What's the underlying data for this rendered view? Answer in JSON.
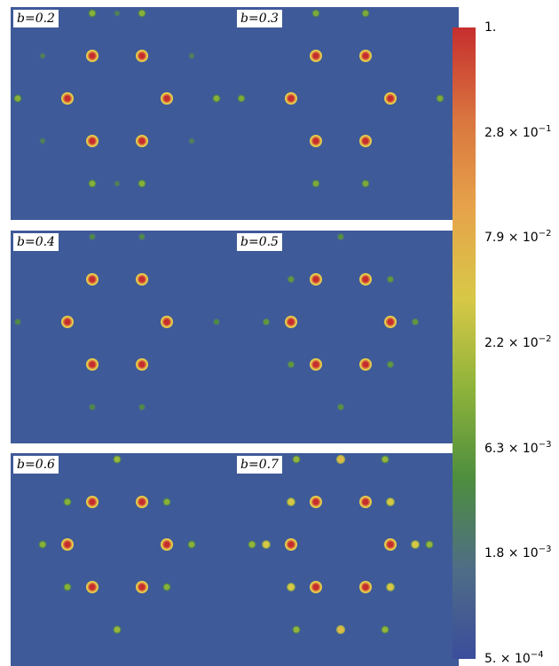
{
  "chart_data": {
    "type": "heatmap",
    "panels": [
      {
        "label": "b=0.2",
        "outer_ring_intensity": 0.012,
        "diagonal_spot_intensity": 0.003,
        "apex_spots": false
      },
      {
        "label": "b=0.3",
        "outer_ring_intensity": 0.01,
        "diagonal_spot_intensity": 0.0,
        "apex_spots": false
      },
      {
        "label": "b=0.4",
        "outer_ring_intensity": 0.004,
        "diagonal_spot_intensity": 0.0,
        "apex_spots": false
      },
      {
        "label": "b=0.5",
        "outer_ring_intensity": 0.006,
        "diagonal_spot_intensity": 0.0,
        "apex_spots": true,
        "apex_intensity": 0.005
      },
      {
        "label": "b=0.6",
        "outer_ring_intensity": 0.012,
        "diagonal_spot_intensity": 0.0,
        "apex_spots": true,
        "apex_intensity": 0.015
      },
      {
        "label": "b=0.7",
        "outer_ring_intensity": 0.04,
        "diagonal_spot_intensity": 0.0,
        "apex_spots": true,
        "apex_intensity": 0.06
      }
    ],
    "bragg_peak_intensity": 1.0,
    "colorbar": {
      "scale": "log",
      "min": 0.0005,
      "max": 1.0,
      "tick_labels": [
        {
          "mantissa": "1.",
          "exp": ""
        },
        {
          "mantissa": "2.8 × 10",
          "exp": "−1"
        },
        {
          "mantissa": "7.9 × 10",
          "exp": "−2"
        },
        {
          "mantissa": "2.2 × 10",
          "exp": "−2"
        },
        {
          "mantissa": "6.3 × 10",
          "exp": "−3"
        },
        {
          "mantissa": "1.8 × 10",
          "exp": "−3"
        },
        {
          "mantissa": "5. × 10",
          "exp": "−4"
        }
      ],
      "colors": [
        "#3b4d9c",
        "#4f6d86",
        "#4e8e3e",
        "#8fb33a",
        "#d8c847",
        "#e6a34a",
        "#d9743f",
        "#c62e2e"
      ]
    },
    "background_color": "#3f5a98"
  }
}
